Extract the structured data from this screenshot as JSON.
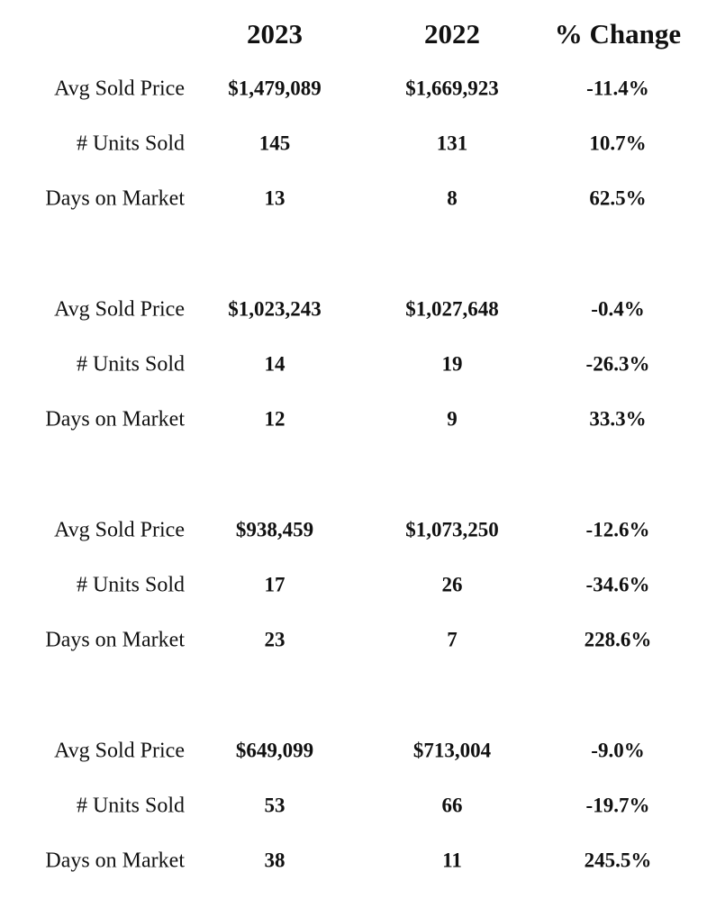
{
  "table": {
    "header": [
      "2023",
      "2022",
      "% Change"
    ],
    "groups": [
      {
        "rows": [
          [
            "Avg Sold Price",
            "$1,479,089",
            "$1,669,923",
            "-11.4%"
          ],
          [
            "# Units Sold",
            "145",
            "131",
            "10.7%"
          ],
          [
            "Days on Market",
            "13",
            "8",
            "62.5%"
          ]
        ]
      },
      {
        "rows": [
          [
            "Avg Sold Price",
            "$1,023,243",
            "$1,027,648",
            "-0.4%"
          ],
          [
            "# Units Sold",
            "14",
            "19",
            "-26.3%"
          ],
          [
            "Days on Market",
            "12",
            "9",
            "33.3%"
          ]
        ]
      },
      {
        "rows": [
          [
            "Avg Sold Price",
            "$938,459",
            "$1,073,250",
            "-12.6%"
          ],
          [
            "# Units Sold",
            "17",
            "26",
            "-34.6%"
          ],
          [
            "Days on Market",
            "23",
            "7",
            "228.6%"
          ]
        ]
      },
      {
        "rows": [
          [
            "Avg Sold Price",
            "$649,099",
            "$713,004",
            "-9.0%"
          ],
          [
            "# Units Sold",
            "53",
            "66",
            "-19.7%"
          ],
          [
            "Days on Market",
            "38",
            "11",
            "245.5%"
          ]
        ]
      }
    ]
  }
}
